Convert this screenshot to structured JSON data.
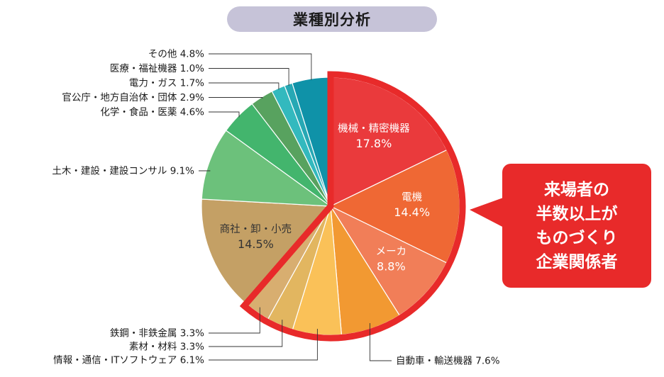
{
  "chart_data": {
    "type": "pie",
    "title": "業種別分析",
    "unit": "%",
    "start_angle_deg": 0,
    "slices": [
      {
        "label": "機械・精密機器",
        "value": 17.8,
        "display": "17.8%",
        "color": "#ea3a3c",
        "inside": true,
        "text_color": "#ffffff"
      },
      {
        "label": "電機",
        "value": 14.4,
        "display": "14.4%",
        "color": "#ef6834",
        "inside": true,
        "text_color": "#ffffff"
      },
      {
        "label": "メーカ",
        "value": 8.8,
        "display": "8.8%",
        "color": "#f17e58",
        "inside": true,
        "text_color": "#ffffff"
      },
      {
        "label": "自動車・輸送機器",
        "value": 7.6,
        "display": "7.6%",
        "color": "#f29932",
        "inside": false
      },
      {
        "label": "情報・通信・ITソフトウェア",
        "value": 6.1,
        "display": "6.1%",
        "color": "#fac158",
        "inside": false
      },
      {
        "label": "素材・材料",
        "value": 3.3,
        "display": "3.3%",
        "color": "#e2b660",
        "inside": false
      },
      {
        "label": "鉄鋼・非鉄金属",
        "value": 3.3,
        "display": "3.3%",
        "color": "#d8ae70",
        "inside": false
      },
      {
        "label": "商社・卸・小売",
        "value": 14.5,
        "display": "14.5%",
        "color": "#c4a065",
        "inside": true,
        "text_color": "#333333"
      },
      {
        "label": "土木・建設・建設コンサル",
        "value": 9.1,
        "display": "9.1%",
        "color": "#6cc17b",
        "inside": false
      },
      {
        "label": "化学・食品・医薬",
        "value": 4.6,
        "display": "4.6%",
        "color": "#43b56d",
        "inside": false
      },
      {
        "label": "官公庁・地方自治体・団体",
        "value": 2.9,
        "display": "2.9%",
        "color": "#58a25f",
        "inside": false
      },
      {
        "label": "電力・ガス",
        "value": 1.7,
        "display": "1.7%",
        "color": "#33b9be",
        "inside": false
      },
      {
        "label": "医療・福祉機器",
        "value": 1.0,
        "display": "1.0%",
        "color": "#27a8b4",
        "inside": false
      },
      {
        "label": "その他",
        "value": 4.8,
        "display": "4.8%",
        "color": "#0f92a8",
        "inside": false
      }
    ],
    "highlight": {
      "slices": [
        "機械・精密機器",
        "電機",
        "メーカ",
        "自動車・輸送機器",
        "情報・通信・ITソフトウェア",
        "素材・材料",
        "鉄鋼・非鉄金属"
      ],
      "color": "#e82a2a"
    },
    "callout": {
      "lines": [
        "来場者の",
        "半数以上が",
        "ものづくり",
        "企業関係者"
      ],
      "background": "#e82a2a",
      "text_color": "#ffffff"
    }
  }
}
